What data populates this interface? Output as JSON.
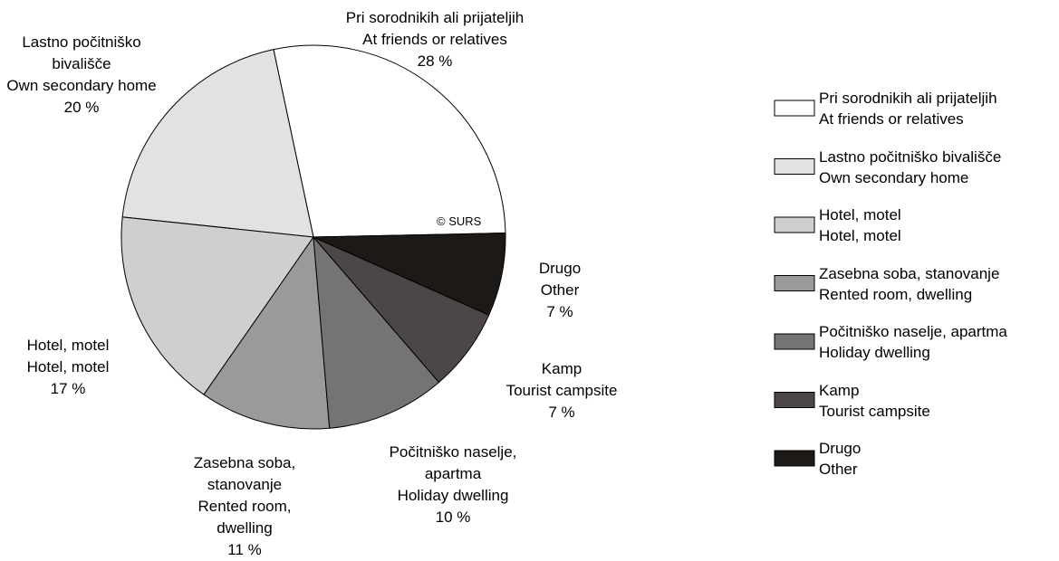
{
  "chart_data": {
    "type": "pie",
    "categories": [
      "Pri sorodnikih ali prijateljih",
      "Lastno počitniško bivališče",
      "Hotel, motel",
      "Zasebna soba, stanovanje",
      "Počitniško naselje, apartma",
      "Kamp",
      "Drugo"
    ],
    "categories_en": [
      "At friends or relatives",
      "Own secondary home",
      "Hotel, motel",
      "Rented room, dwelling",
      "Holiday dwelling",
      "Tourist campsite",
      "Other"
    ],
    "values": [
      28,
      20,
      17,
      11,
      10,
      7,
      7
    ],
    "value_labels": [
      "28 %",
      "20 %",
      "17 %",
      "11 %",
      "10 %",
      "7 %",
      "7 %"
    ],
    "colors": [
      "#ffffff",
      "#e2e2e2",
      "#cfcfcf",
      "#9a9a9a",
      "#747474",
      "#4c4746",
      "#1d1917"
    ],
    "annotation": "© SURS",
    "legend": "right"
  }
}
